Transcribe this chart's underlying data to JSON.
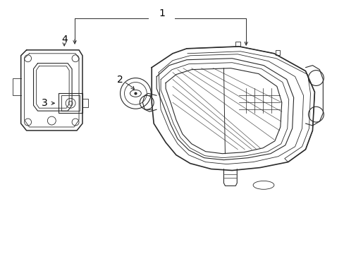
{
  "bg_color": "#ffffff",
  "lc": "#2a2a2a",
  "lc_light": "#555555",
  "label_color": "#000000",
  "fig_w": 4.89,
  "fig_h": 3.6,
  "dpi": 100
}
